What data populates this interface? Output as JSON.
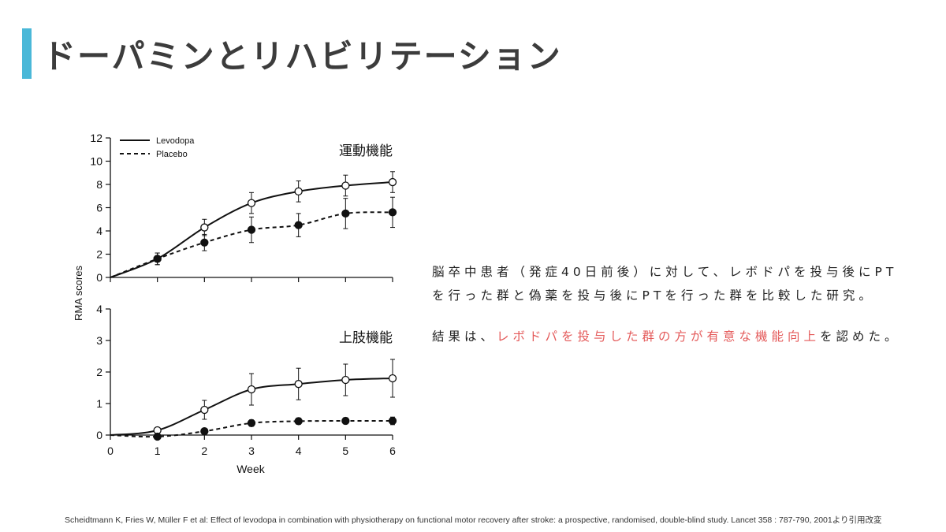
{
  "slide": {
    "title": "ドーパミンとリハビリテーション",
    "accent_color": "#4ab8d8",
    "highlight_color": "#e45a5a"
  },
  "description": {
    "line1": "脳卒中患者（発症40日前後）に対して、レボドパを投与後にPT",
    "line2": "を行った群と偽薬を投与後にPTを行った群を比較した研究。",
    "result_prefix": "結果は、",
    "result_highlight": "レボドパを投与した群の方が有意な機能向上",
    "result_suffix": "を認めた。"
  },
  "citation": "Scheidtmann K, Fries W, Müller F et al: Effect of levodopa in combination with physiotherapy on functional motor recovery after stroke: a prospective, randomised, double-blind study. Lancet 358 : 787-790, 2001より引用改変",
  "chart_data": {
    "type": "line",
    "xlabel": "Week",
    "ylabel": "RMA scores",
    "x": [
      0,
      1,
      2,
      3,
      4,
      5,
      6
    ],
    "legend": [
      "Levodopa",
      "Placebo"
    ],
    "legend_position": "top-left",
    "panels": [
      {
        "title": "運動機能",
        "ylim": [
          0,
          12
        ],
        "yticks": [
          0,
          2,
          4,
          6,
          8,
          10,
          12
        ],
        "series": [
          {
            "name": "Levodopa",
            "style": "solid",
            "marker": "open-circle",
            "values": [
              0,
              1.6,
              4.3,
              6.4,
              7.4,
              7.9,
              8.2
            ],
            "error": [
              0,
              0.5,
              0.7,
              0.9,
              0.9,
              0.9,
              0.9
            ]
          },
          {
            "name": "Placebo",
            "style": "dashed",
            "marker": "filled-circle",
            "values": [
              0,
              1.6,
              3.0,
              4.1,
              4.5,
              5.5,
              5.6
            ],
            "error": [
              0,
              0.5,
              0.7,
              1.1,
              1.0,
              1.3,
              1.3
            ]
          }
        ]
      },
      {
        "title": "上肢機能",
        "ylim": [
          0,
          4
        ],
        "yticks": [
          0,
          1,
          2,
          3,
          4
        ],
        "series": [
          {
            "name": "Levodopa",
            "style": "solid",
            "marker": "open-circle",
            "values": [
              0,
              0.15,
              0.8,
              1.45,
              1.62,
              1.75,
              1.8
            ],
            "error": [
              0,
              0.05,
              0.3,
              0.5,
              0.5,
              0.5,
              0.6
            ]
          },
          {
            "name": "Placebo",
            "style": "dashed",
            "marker": "filled-circle",
            "values": [
              0,
              -0.05,
              0.12,
              0.38,
              0.44,
              0.45,
              0.45
            ],
            "error": [
              0,
              0.05,
              0.05,
              0.1,
              0.1,
              0.1,
              0.12
            ]
          }
        ]
      }
    ]
  }
}
